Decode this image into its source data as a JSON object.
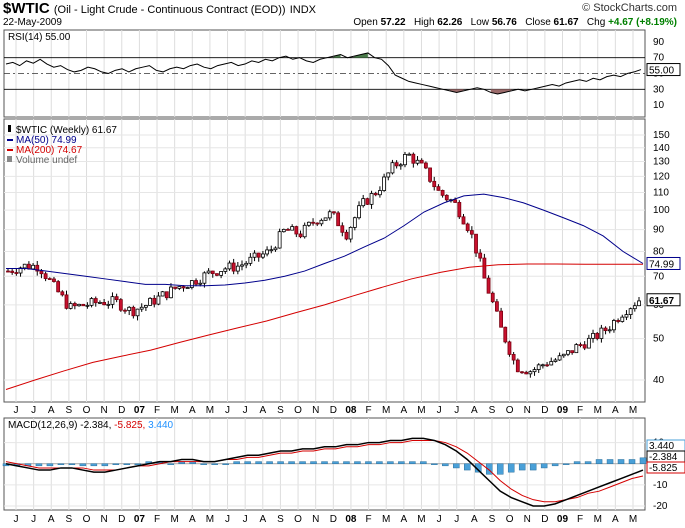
{
  "header": {
    "symbol": "$WTIC",
    "description": "(Oil - Light Crude - Continuous Contract (EOD))",
    "exchange": "INDX",
    "date": "22-May-2009",
    "brand": "© StockCharts.com",
    "quote": {
      "open_label": "Open",
      "open": "57.22",
      "high_label": "High",
      "high": "62.26",
      "low_label": "Low",
      "low": "56.76",
      "close_label": "Close",
      "close": "61.67",
      "chg_label": "Chg",
      "chg": "+4.67 (+8.19%)",
      "chg_color": "#008000"
    }
  },
  "rsi_panel": {
    "label": "RSI(14) 55.00",
    "value_badge": "55.00",
    "ticks": [
      "90",
      "70",
      "50",
      "30",
      "10"
    ]
  },
  "price_panel": {
    "legend": [
      {
        "text": "$WTIC (Weekly) 61.67",
        "color": "#000000",
        "marker": "bar"
      },
      {
        "text": "MA(50) 74.99",
        "color": "#00008b",
        "marker": "line"
      },
      {
        "text": "MA(200) 74.67",
        "color": "#d40000",
        "marker": "line"
      },
      {
        "text": "Volume undef",
        "color": "#666666",
        "marker": "vol"
      }
    ],
    "ticks": [
      "150",
      "140",
      "130",
      "120",
      "110",
      "100",
      "90",
      "80",
      "70",
      "60",
      "50",
      "40"
    ],
    "last_badge": "61.67",
    "ma50_badge": "74.99"
  },
  "macd_panel": {
    "label": "MACD(12,26,9)",
    "v1": "-2.384,",
    "v2": "-5.825,",
    "v3": "3.440",
    "v2_color": "#d40000",
    "v3_color": "#1e90ff",
    "ticks": [
      "10",
      "0",
      "-10",
      "-20"
    ],
    "badges": [
      "3.440",
      "-2.384",
      "-5.825"
    ]
  },
  "x_axis": {
    "labels": [
      "J",
      "J",
      "A",
      "S",
      "O",
      "N",
      "D",
      "07",
      "F",
      "M",
      "A",
      "M",
      "J",
      "J",
      "A",
      "S",
      "O",
      "N",
      "D",
      "08",
      "F",
      "M",
      "A",
      "M",
      "J",
      "J",
      "A",
      "S",
      "O",
      "N",
      "D",
      "09",
      "F",
      "M",
      "A",
      "M"
    ],
    "bold_labels": [
      "07",
      "08",
      "09"
    ]
  },
  "chart_data": {
    "type": "candlestick",
    "title": "$WTIC (Oil - Light Crude - Continuous Contract (EOD))",
    "period": "weekly",
    "date_range": [
      "2006-06",
      "2009-05-22"
    ],
    "scale": "log",
    "price_range": [
      35,
      150
    ],
    "series": [
      {
        "name": "$WTIC (Weekly)",
        "type": "candlestick",
        "close_monthly": [
          72,
          74,
          74,
          66,
          59,
          60,
          61,
          61,
          58,
          60,
          63,
          66,
          68,
          71,
          73,
          74,
          77,
          80,
          90,
          88,
          95,
          98,
          88,
          103,
          111,
          126,
          135,
          125,
          110,
          104,
          90,
          68,
          53,
          43,
          42,
          44,
          45,
          48,
          50,
          53,
          58,
          61.67
        ],
        "last": {
          "open": 57.22,
          "high": 62.26,
          "low": 56.76,
          "close": 61.67
        }
      },
      {
        "name": "MA(50)",
        "type": "line",
        "last": 74.99,
        "values": [
          73,
          73,
          72,
          71,
          70,
          69,
          68,
          67,
          67,
          66.5,
          66.5,
          66.8,
          67.5,
          68.5,
          70,
          72,
          75,
          78,
          82,
          86,
          92,
          99,
          104,
          108,
          109,
          107,
          104,
          100,
          96,
          92,
          87,
          80,
          74.99
        ]
      },
      {
        "name": "MA(200)",
        "type": "line",
        "last": 74.67,
        "values": [
          38,
          40,
          42,
          44,
          45.5,
          47,
          49,
          51,
          53,
          55,
          57.5,
          60,
          63,
          66,
          69,
          71.5,
          73.5,
          74.5,
          74.8,
          74.8,
          74.7,
          74.7,
          74.67
        ]
      }
    ],
    "rsi": {
      "period": 14,
      "last": 55.0,
      "ylim": [
        0,
        100
      ],
      "levels": [
        70,
        30
      ]
    },
    "macd": {
      "params": [
        12,
        26,
        9
      ],
      "macd": -2.384,
      "signal": -5.825,
      "histogram": 3.44,
      "ylim": [
        -20,
        15
      ]
    }
  }
}
